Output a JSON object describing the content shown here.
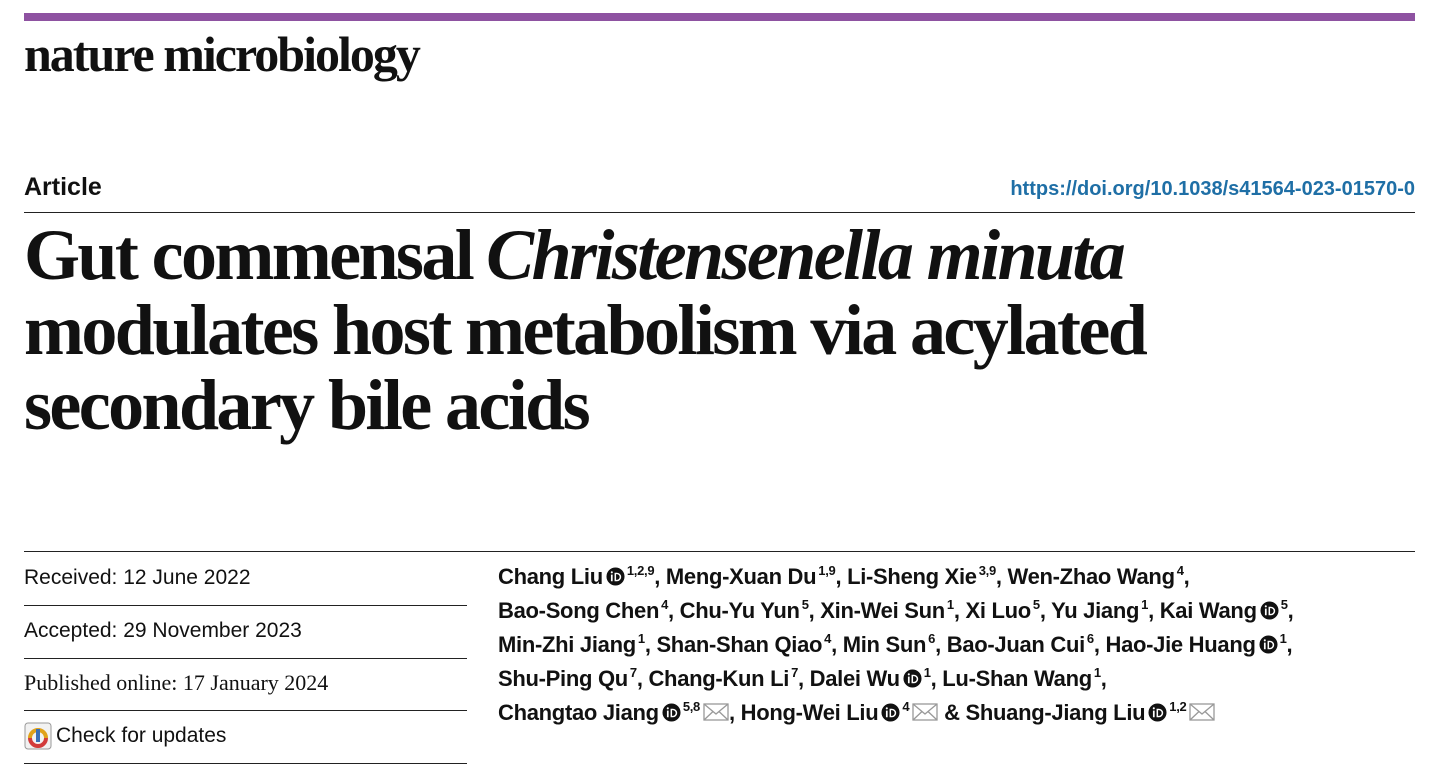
{
  "header": {
    "journal": "nature microbiology",
    "article_type": "Article",
    "doi": "https://doi.org/10.1038/s41564-023-01570-0"
  },
  "title": {
    "lines": [
      [
        {
          "text": "Gut commensal",
          "italic": false
        },
        {
          "text": "Christensenella minuta",
          "italic": true
        }
      ],
      [
        {
          "text": "modulates host metabolism via acylated",
          "italic": false
        }
      ],
      [
        {
          "text": "secondary bile acids",
          "italic": false
        }
      ]
    ]
  },
  "dates": {
    "received": "Received: 12 June 2022",
    "accepted": "Accepted: 29 November 2023",
    "published": "Published online: 17 January 2024"
  },
  "updates": "Check for updates",
  "authors": {
    "lines": [
      [
        {
          "name": "Chang Liu",
          "orcid": true,
          "affiliations": "1,2,9",
          "email": false,
          "punct": ","
        },
        {
          "name": "Meng-Xuan Du",
          "orcid": false,
          "affiliations": "1,9",
          "email": false,
          "punct": ","
        },
        {
          "name": "Li-Sheng Xie",
          "orcid": false,
          "affiliations": "3,9",
          "email": false,
          "punct": ","
        },
        {
          "name": "Wen-Zhao Wang",
          "orcid": false,
          "affiliations": "4",
          "email": false,
          "punct": ","
        }
      ],
      [
        {
          "name": "Bao-Song Chen",
          "orcid": false,
          "affiliations": "4",
          "email": false,
          "punct": ","
        },
        {
          "name": "Chu-Yu Yun",
          "orcid": false,
          "affiliations": "5",
          "email": false,
          "punct": ","
        },
        {
          "name": "Xin-Wei Sun",
          "orcid": false,
          "affiliations": "1",
          "email": false,
          "punct": ","
        },
        {
          "name": "Xi Luo",
          "orcid": false,
          "affiliations": "5",
          "email": false,
          "punct": ","
        },
        {
          "name": "Yu Jiang",
          "orcid": false,
          "affiliations": "1",
          "email": false,
          "punct": ","
        },
        {
          "name": "Kai Wang",
          "orcid": true,
          "affiliations": "5",
          "email": false,
          "punct": ","
        }
      ],
      [
        {
          "name": "Min-Zhi Jiang",
          "orcid": false,
          "affiliations": "1",
          "email": false,
          "punct": ","
        },
        {
          "name": "Shan-Shan Qiao",
          "orcid": false,
          "affiliations": "4",
          "email": false,
          "punct": ","
        },
        {
          "name": "Min Sun",
          "orcid": false,
          "affiliations": "6",
          "email": false,
          "punct": ","
        },
        {
          "name": "Bao-Juan Cui",
          "orcid": false,
          "affiliations": "6",
          "email": false,
          "punct": ","
        },
        {
          "name": "Hao-Jie Huang",
          "orcid": true,
          "affiliations": "1",
          "email": false,
          "punct": ","
        }
      ],
      [
        {
          "name": "Shu-Ping Qu",
          "orcid": false,
          "affiliations": "7",
          "email": false,
          "punct": ","
        },
        {
          "name": "Chang-Kun Li",
          "orcid": false,
          "affiliations": "7",
          "email": false,
          "punct": ","
        },
        {
          "name": "Dalei Wu",
          "orcid": true,
          "affiliations": "1",
          "email": false,
          "punct": ","
        },
        {
          "name": "Lu-Shan Wang",
          "orcid": false,
          "affiliations": "1",
          "email": false,
          "punct": ","
        }
      ],
      [
        {
          "name": "Changtao Jiang",
          "orcid": true,
          "affiliations": "5,8",
          "email": true,
          "punct": ","
        },
        {
          "name": "Hong-Wei Liu",
          "orcid": true,
          "affiliations": "4",
          "email": true
        },
        {
          "prefix": "&",
          "name": "Shuang-Jiang Liu",
          "orcid": true,
          "affiliations": "1,2",
          "email": true
        }
      ]
    ]
  }
}
